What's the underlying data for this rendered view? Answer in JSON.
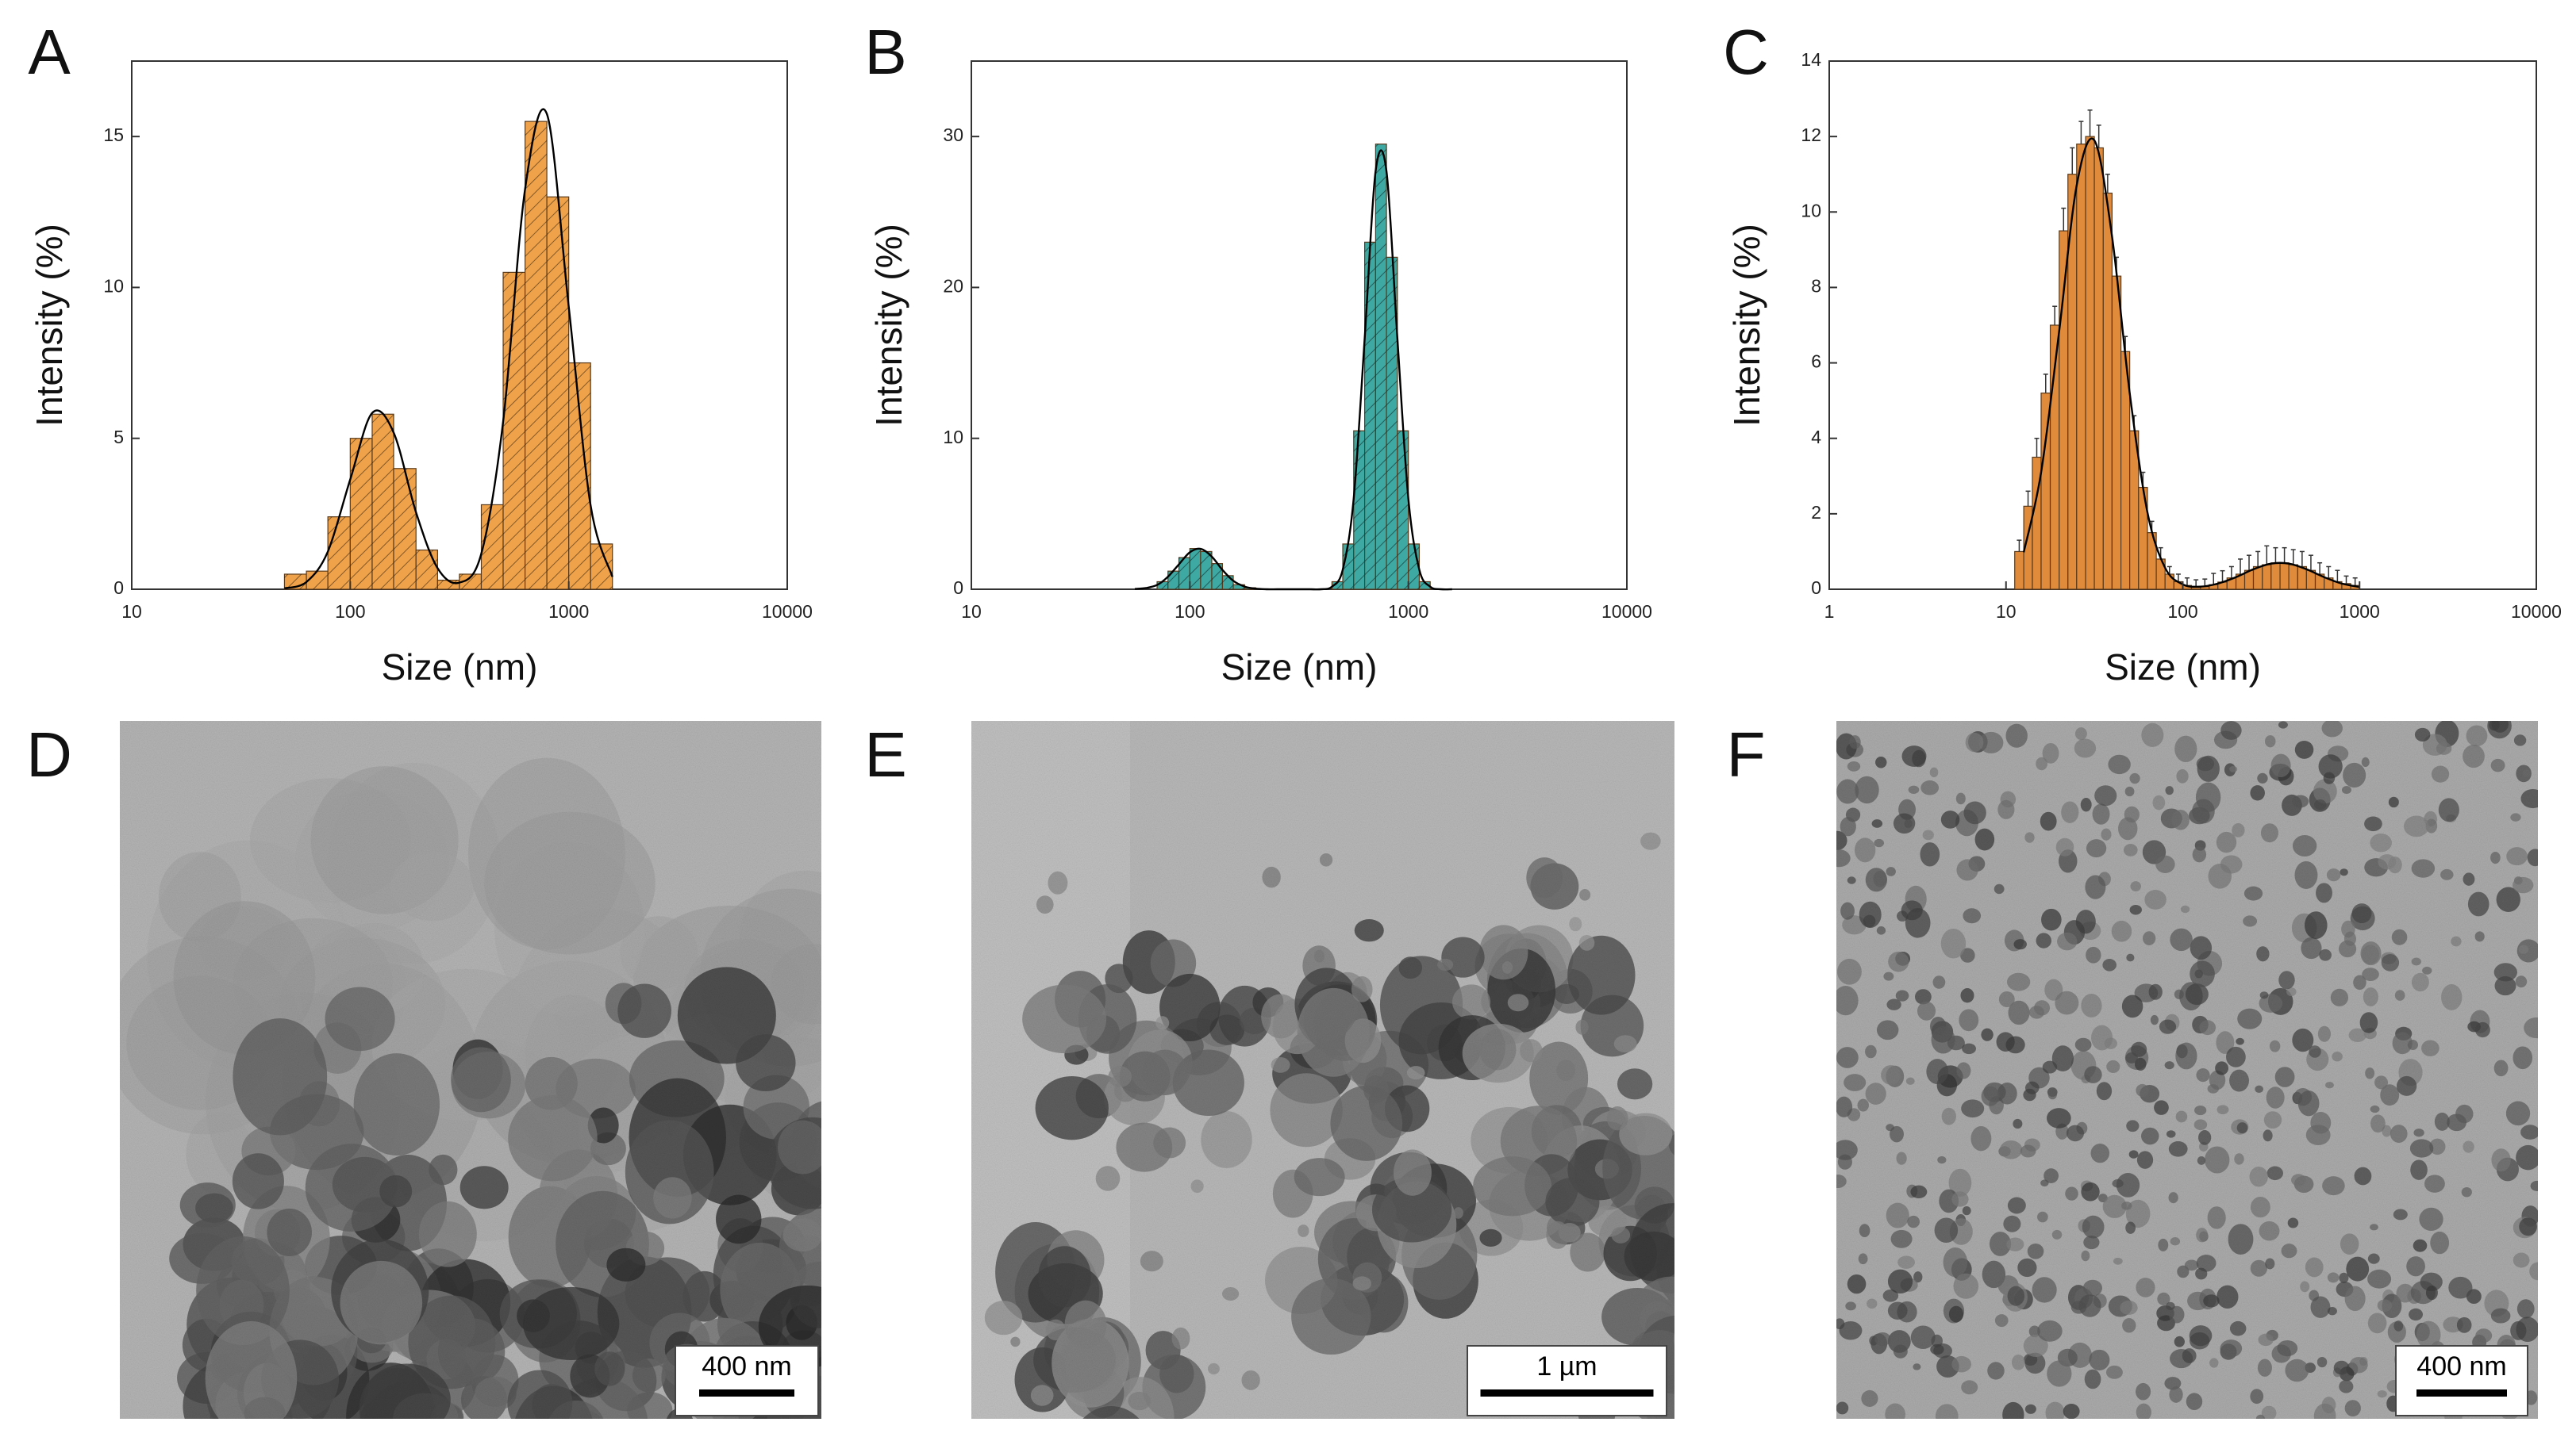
{
  "chart_data": [
    {
      "type": "histogram",
      "panel_label": "A",
      "xlabel": "Size (nm)",
      "ylabel": "Intensity (%)",
      "xscale": "log",
      "xlim": [
        10,
        10000
      ],
      "xticks": [
        10,
        100,
        1000,
        10000
      ],
      "ylim": [
        0,
        17.5
      ],
      "yticks": [
        0,
        5,
        10,
        15
      ],
      "bins": [
        50,
        63,
        79,
        100,
        126,
        158,
        200,
        251,
        316,
        398,
        501,
        631,
        794,
        1000,
        1259,
        1585
      ],
      "values": [
        0.5,
        0.6,
        2.4,
        5.0,
        5.8,
        4.0,
        1.3,
        0.3,
        0.5,
        2.8,
        10.5,
        15.5,
        13,
        7.5,
        1.5
      ],
      "color": "#efa24a",
      "hatch": true,
      "fit": {
        "x": [
          50,
          63,
          79,
          100,
          126,
          158,
          200,
          251,
          316,
          398,
          501,
          631,
          794,
          1000,
          1259,
          1585
        ],
        "values": [
          0.03,
          0.24,
          1.25,
          3.64,
          5.84,
          5.19,
          2.55,
          0.7,
          0.22,
          1.18,
          5.56,
          13.25,
          15.75,
          9.36,
          2.78,
          0.41
        ],
        "color": "#000000"
      }
    },
    {
      "type": "histogram",
      "panel_label": "B",
      "xlabel": "Size (nm)",
      "ylabel": "Intensity (%)",
      "xscale": "log",
      "xlim": [
        10,
        10000
      ],
      "xticks": [
        10,
        100,
        1000,
        10000
      ],
      "ylim": [
        0,
        35
      ],
      "yticks": [
        0,
        10,
        20,
        30
      ],
      "bins": [
        70.8,
        79.4,
        89.1,
        100,
        112,
        126,
        141,
        158,
        178,
        200,
        224,
        251,
        282,
        316,
        355,
        398,
        447,
        501,
        562,
        631,
        708,
        794,
        891,
        1000,
        1122,
        1259,
        1413
      ],
      "values": [
        0.5,
        1.2,
        2.1,
        2.7,
        2.5,
        1.7,
        0.9,
        0.3,
        0.1,
        0,
        0,
        0,
        0,
        0,
        0,
        0,
        0.5,
        3,
        10.5,
        23,
        29.5,
        22,
        10.5,
        3,
        0.5,
        0
      ],
      "color": "#3ea8a2",
      "hatch": true,
      "fit": {
        "x": [
          56,
          63,
          71,
          79,
          89,
          100,
          112,
          126,
          141,
          158,
          178,
          200,
          224,
          251,
          282,
          316,
          355,
          398,
          447,
          501,
          562,
          631,
          708,
          794,
          891,
          1000,
          1122,
          1259,
          1413,
          1585
        ],
        "values": [
          0.02,
          0.08,
          0.29,
          0.8,
          1.64,
          2.45,
          2.68,
          2.16,
          1.28,
          0.56,
          0.18,
          0.04,
          0,
          0,
          0,
          0,
          0,
          0,
          0.17,
          1.3,
          6,
          16.6,
          27.7,
          27.7,
          16.6,
          6,
          1.3,
          0.17,
          0,
          0
        ],
        "color": "#000000"
      }
    },
    {
      "type": "histogram",
      "panel_label": "C",
      "xlabel": "Size (nm)",
      "ylabel": "Intensity (%)",
      "xscale": "log",
      "xlim": [
        1,
        10000
      ],
      "xticks": [
        1,
        10,
        100,
        1000,
        10000
      ],
      "ylim": [
        0,
        14
      ],
      "yticks": [
        0,
        2,
        4,
        6,
        8,
        10,
        12,
        14
      ],
      "bins": [
        11.2,
        12.6,
        14.1,
        15.8,
        17.8,
        20,
        22.4,
        25.1,
        28.2,
        31.6,
        35.5,
        39.8,
        44.7,
        50.1,
        56.2,
        63.1,
        70.8,
        79.4,
        89.1,
        100,
        112,
        126,
        141,
        158,
        178,
        200,
        224,
        251,
        282,
        316,
        355,
        398,
        447,
        501,
        562,
        631,
        708,
        794,
        891,
        1000
      ],
      "values": [
        1.0,
        2.2,
        3.5,
        5.2,
        7,
        9.5,
        11,
        11.8,
        12,
        11.7,
        10.5,
        8.3,
        6.3,
        4.2,
        2.7,
        1.5,
        0.8,
        0.4,
        0.2,
        0.1,
        0.05,
        0.07,
        0.12,
        0.19,
        0.3,
        0.4,
        0.5,
        0.6,
        0.65,
        0.7,
        0.7,
        0.65,
        0.6,
        0.5,
        0.4,
        0.3,
        0.2,
        0.15,
        0.1
      ],
      "errors": [
        0.3,
        0.4,
        0.5,
        0.5,
        0.5,
        0.6,
        0.7,
        0.6,
        0.7,
        0.6,
        0.5,
        0.5,
        0.4,
        0.4,
        0.4,
        0.3,
        0.3,
        0.2,
        0.2,
        0.2,
        0.2,
        0.2,
        0.3,
        0.3,
        0.3,
        0.4,
        0.4,
        0.4,
        0.5,
        0.4,
        0.4,
        0.4,
        0.4,
        0.4,
        0.3,
        0.3,
        0.3,
        0.2,
        0.2
      ],
      "color": "#e08a3c",
      "hatch": false,
      "fit": {
        "x": [
          12.6,
          15.8,
          20,
          25.1,
          31.6,
          39.8,
          50.1,
          63.1,
          79.4,
          100,
          126,
          158,
          200,
          251,
          316,
          398,
          501,
          631,
          794,
          1000
        ],
        "values": [
          0.98,
          3.1,
          6.85,
          10.7,
          11.9,
          9.35,
          5.2,
          2.04,
          0.57,
          0.13,
          0.07,
          0.15,
          0.32,
          0.53,
          0.68,
          0.68,
          0.53,
          0.32,
          0.15,
          0.06
        ],
        "color": "#000000"
      }
    }
  ],
  "images": [
    {
      "panel_label": "D",
      "scale_bar": "400 nm"
    },
    {
      "panel_label": "E",
      "scale_bar": "1 µm"
    },
    {
      "panel_label": "F",
      "scale_bar": "400 nm"
    }
  ]
}
